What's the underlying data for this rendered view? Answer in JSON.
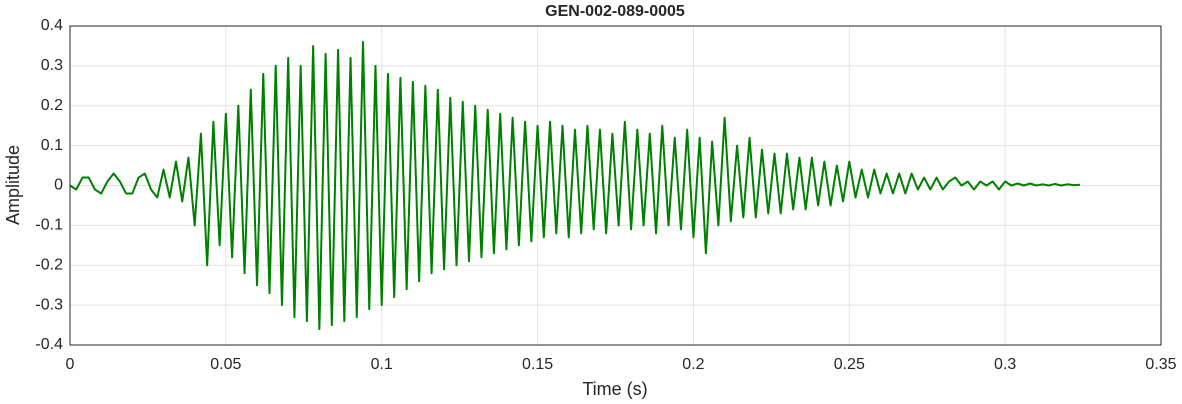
{
  "chart_data": {
    "type": "line",
    "title": "GEN-002-089-0005",
    "x_label": "Time (s)",
    "y_label": "Amplitude",
    "color": "#008000",
    "grid": true,
    "xlim": [
      0,
      0.35
    ],
    "xticks": [
      0,
      0.05,
      0.1,
      0.15,
      0.2,
      0.25,
      0.3,
      0.35
    ],
    "ylim": [
      -0.4,
      0.4
    ],
    "yticks": [
      -0.4,
      -0.3,
      -0.2,
      -0.1,
      0,
      0.1,
      0.2,
      0.3,
      0.4
    ],
    "x": [
      0,
      0.002,
      0.004,
      0.006,
      0.008,
      0.01,
      0.012,
      0.014,
      0.016,
      0.018,
      0.02,
      0.022,
      0.024,
      0.026,
      0.028,
      0.03,
      0.032,
      0.034,
      0.036,
      0.038,
      0.04,
      0.042,
      0.044,
      0.046,
      0.048,
      0.05,
      0.052,
      0.054,
      0.056,
      0.058,
      0.06,
      0.062,
      0.064,
      0.066,
      0.068,
      0.07,
      0.072,
      0.074,
      0.076,
      0.078,
      0.08,
      0.082,
      0.084,
      0.086,
      0.088,
      0.09,
      0.092,
      0.094,
      0.096,
      0.098,
      0.1,
      0.102,
      0.104,
      0.106,
      0.108,
      0.11,
      0.112,
      0.114,
      0.116,
      0.118,
      0.12,
      0.122,
      0.124,
      0.126,
      0.128,
      0.13,
      0.132,
      0.134,
      0.136,
      0.138,
      0.14,
      0.142,
      0.144,
      0.146,
      0.148,
      0.15,
      0.152,
      0.154,
      0.156,
      0.158,
      0.16,
      0.162,
      0.164,
      0.166,
      0.168,
      0.17,
      0.172,
      0.174,
      0.176,
      0.178,
      0.18,
      0.182,
      0.184,
      0.186,
      0.188,
      0.19,
      0.192,
      0.194,
      0.196,
      0.198,
      0.2,
      0.202,
      0.204,
      0.206,
      0.208,
      0.21,
      0.212,
      0.214,
      0.216,
      0.218,
      0.22,
      0.222,
      0.224,
      0.226,
      0.228,
      0.23,
      0.232,
      0.234,
      0.236,
      0.238,
      0.24,
      0.242,
      0.244,
      0.246,
      0.248,
      0.25,
      0.252,
      0.254,
      0.256,
      0.258,
      0.26,
      0.262,
      0.264,
      0.266,
      0.268,
      0.27,
      0.272,
      0.274,
      0.276,
      0.278,
      0.28,
      0.282,
      0.284,
      0.286,
      0.288,
      0.29,
      0.292,
      0.294,
      0.296,
      0.298,
      0.3,
      0.302,
      0.304,
      0.306,
      0.308,
      0.31,
      0.312,
      0.314,
      0.316,
      0.318,
      0.32,
      0.322,
      0.324
    ],
    "values": [
      0,
      -0.01,
      0.02,
      0.02,
      -0.01,
      -0.02,
      0.01,
      0.03,
      0.01,
      -0.02,
      -0.02,
      0.02,
      0.03,
      -0.01,
      -0.03,
      0.04,
      -0.03,
      0.06,
      -0.04,
      0.07,
      -0.1,
      0.13,
      -0.2,
      0.16,
      -0.15,
      0.18,
      -0.18,
      0.2,
      -0.22,
      0.24,
      -0.25,
      0.28,
      -0.27,
      0.3,
      -0.3,
      0.32,
      -0.33,
      0.3,
      -0.34,
      0.35,
      -0.36,
      0.33,
      -0.35,
      0.34,
      -0.34,
      0.32,
      -0.33,
      0.36,
      -0.31,
      0.3,
      -0.3,
      0.28,
      -0.28,
      0.27,
      -0.26,
      0.26,
      -0.24,
      0.25,
      -0.22,
      0.24,
      -0.21,
      0.22,
      -0.2,
      0.21,
      -0.19,
      0.2,
      -0.18,
      0.19,
      -0.17,
      0.18,
      -0.16,
      0.17,
      -0.15,
      0.16,
      -0.14,
      0.15,
      -0.13,
      0.16,
      -0.12,
      0.15,
      -0.13,
      0.14,
      -0.12,
      0.15,
      -0.11,
      0.14,
      -0.12,
      0.13,
      -0.1,
      0.16,
      -0.11,
      0.14,
      -0.1,
      0.13,
      -0.12,
      0.15,
      -0.1,
      0.12,
      -0.11,
      0.14,
      -0.13,
      0.12,
      -0.17,
      0.11,
      -0.1,
      0.17,
      -0.09,
      0.1,
      -0.08,
      0.12,
      -0.08,
      0.09,
      -0.07,
      0.08,
      -0.07,
      0.08,
      -0.06,
      0.07,
      -0.06,
      0.07,
      -0.05,
      0.06,
      -0.05,
      0.05,
      -0.04,
      0.06,
      -0.03,
      0.04,
      -0.03,
      0.04,
      -0.02,
      0.03,
      -0.02,
      0.03,
      -0.02,
      0.03,
      -0.01,
      0.02,
      -0.01,
      0.02,
      -0.01,
      0.01,
      0.02,
      0,
      0.01,
      -0.01,
      0.01,
      0,
      0.01,
      -0.01,
      0.01,
      0,
      0.005,
      0,
      0.005,
      0,
      0.003,
      0,
      0.004,
      0,
      0.003,
      0.001,
      0.002
    ]
  }
}
